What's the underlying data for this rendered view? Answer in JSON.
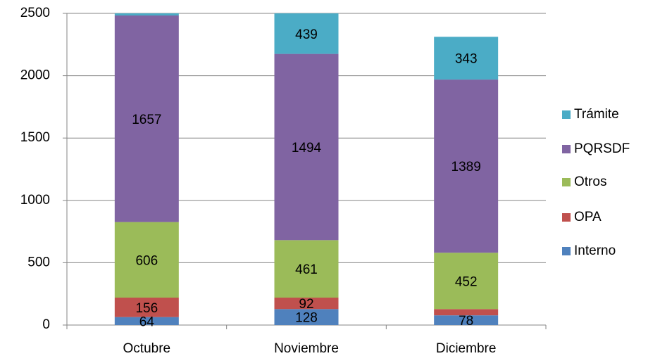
{
  "chart_data": {
    "type": "bar",
    "stacked": true,
    "categories": [
      "Octubre",
      "Noviembre",
      "Diciembre"
    ],
    "series": [
      {
        "name": "Interno",
        "color": "#4f81bd",
        "values": [
          64,
          128,
          78
        ]
      },
      {
        "name": "OPA",
        "color": "#c0504d",
        "values": [
          156,
          92,
          50
        ]
      },
      {
        "name": "Otros",
        "color": "#9bbb59",
        "values": [
          606,
          461,
          452
        ]
      },
      {
        "name": "PQRSDF",
        "color": "#8064a2",
        "values": [
          1657,
          1494,
          1389
        ]
      },
      {
        "name": "Trámite",
        "color": "#4bacc6",
        "values": [
          20,
          439,
          343
        ]
      }
    ],
    "ylim": [
      0,
      2500
    ],
    "yticks": [
      0,
      500,
      1000,
      1500,
      2000,
      2500
    ],
    "grid": true,
    "legend": "right"
  }
}
